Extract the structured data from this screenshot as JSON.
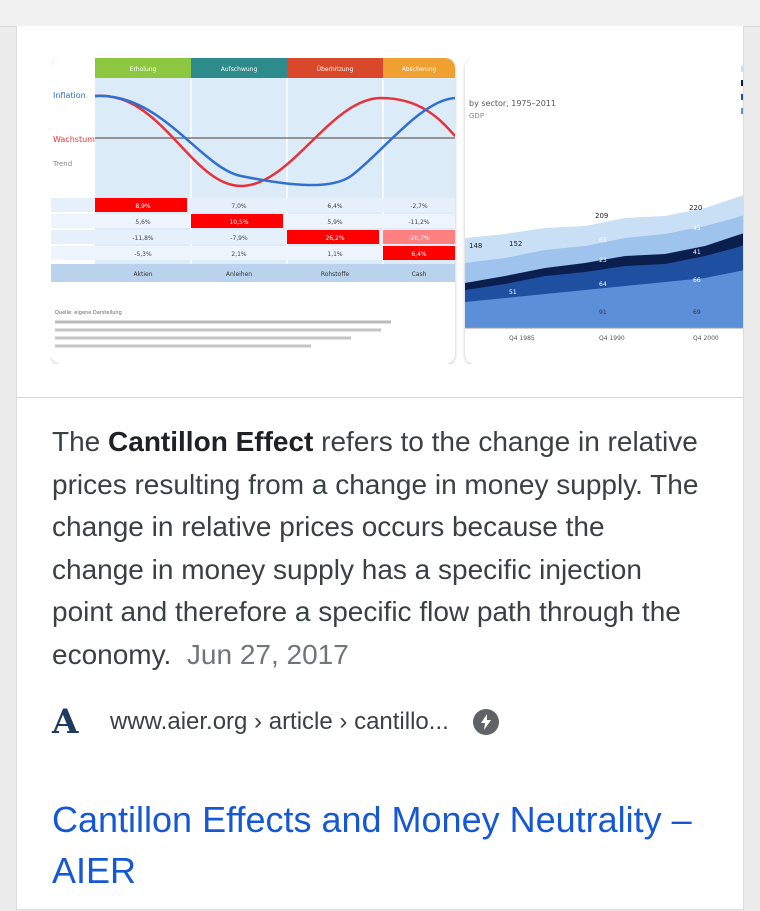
{
  "images": {
    "left_chart": {
      "phase_headers": [
        "Erholung",
        "Aufschwung",
        "Überhitzung",
        "Abschwung"
      ],
      "phase_colors": [
        "#8dc63f",
        "#2e8b8b",
        "#d9482b",
        "#f0a030"
      ],
      "row_labels": [
        "Inflation",
        "Wachstum",
        "Trend"
      ],
      "table_rows": [
        [
          "8,9%",
          "7,0%",
          "6,4%",
          "-2,7%"
        ],
        [
          "5,6%",
          "10,5%",
          "5,9%",
          "-11,2%"
        ],
        [
          "-11,8%",
          "-7,9%",
          "26,2%",
          "-20,7%"
        ],
        [
          "-5,3%",
          "2,1%",
          "1,1%",
          "6,4%"
        ]
      ],
      "asset_row": [
        "Aktien",
        "Anleihen",
        "Rohstoffe",
        "Cash"
      ],
      "footnote": "Quelle: eigene Darstellung"
    },
    "right_chart": {
      "title": "by sector, 1975–2011",
      "subtitle": "GDP",
      "values": [
        "148",
        "152",
        "209",
        "220",
        "63",
        "45",
        "23",
        "41",
        "64",
        "66",
        "51",
        "91",
        "69"
      ],
      "x_ticks": [
        "Q4\n1985",
        "Q4\n1990",
        "Q4\n2000"
      ],
      "colors": [
        "#c9dff5",
        "#9ec4ee",
        "#0b1f4f",
        "#1e4fa0",
        "#5b8fd8"
      ]
    }
  },
  "snippet": {
    "lead": "The ",
    "bold": "Cantillon Effect",
    "body": " refers to the change in relative prices resulting from a change in money supply. The change in relative prices occurs because the change in money supply has a specific injection point and therefore a specific flow path through the economy.",
    "date": "Jun 27, 2017"
  },
  "source": {
    "logo_letter": "A",
    "breadcrumb": "www.aier.org › article › cantillo...",
    "amp_icon": "bolt-icon"
  },
  "result": {
    "title": "Cantillon Effects and Money Neutrality – AIER",
    "link_color": "#1558d6"
  }
}
